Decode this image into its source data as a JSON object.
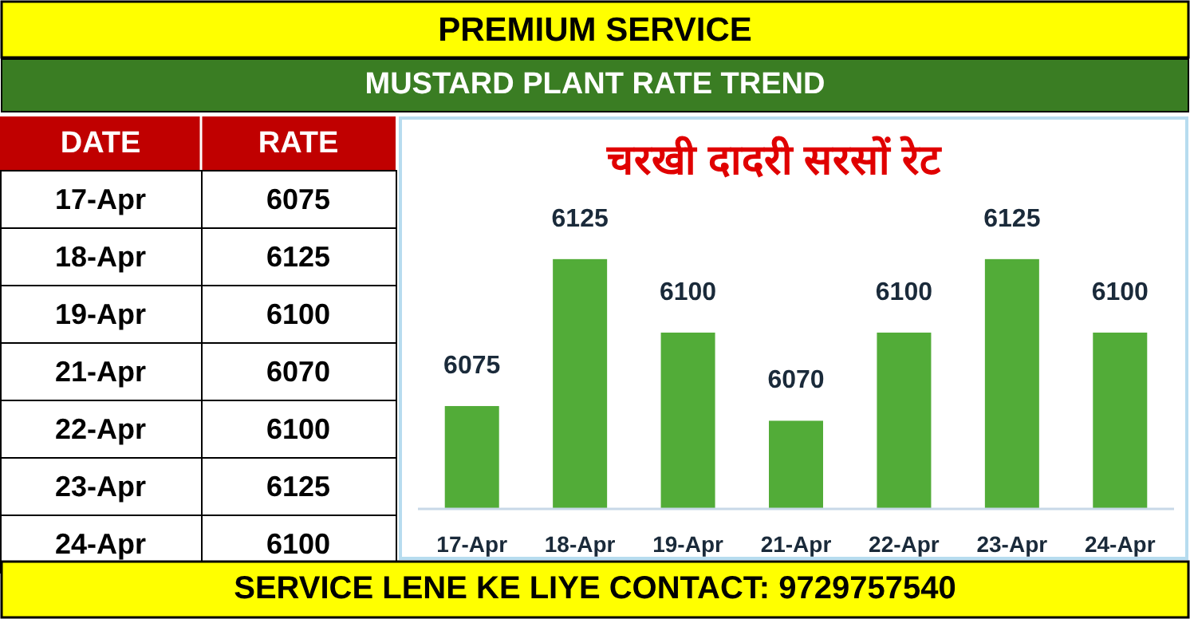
{
  "chart_data": [
    {
      "type": "other",
      "categories": [
        "17-Apr",
        "18-Apr",
        "19-Apr",
        "21-Apr",
        "22-Apr",
        "23-Apr",
        "24-Apr"
      ],
      "values": [
        6075,
        6125,
        6100,
        6070,
        6100,
        6125,
        6100
      ],
      "data_labels": true,
      "annotations": [
        "PREMIUM SERVICE",
        "MUSTARD PLANT RATE TREND",
        "DATE",
        "RATE",
        "SERVICE LENE KE LIYE CONTACT: 9729757540"
      ]
    },
    {
      "type": "bar",
      "title": "चरखी दादरी सरसों रेट",
      "categories": [
        "17-Apr",
        "18-Apr",
        "19-Apr",
        "21-Apr",
        "22-Apr",
        "23-Apr",
        "24-Apr"
      ],
      "values": [
        6075,
        6125,
        6100,
        6070,
        6100,
        6125,
        6100
      ],
      "color": "#52ac38",
      "ylim": [
        6040,
        6173
      ],
      "data_labels": true
    }
  ]
}
